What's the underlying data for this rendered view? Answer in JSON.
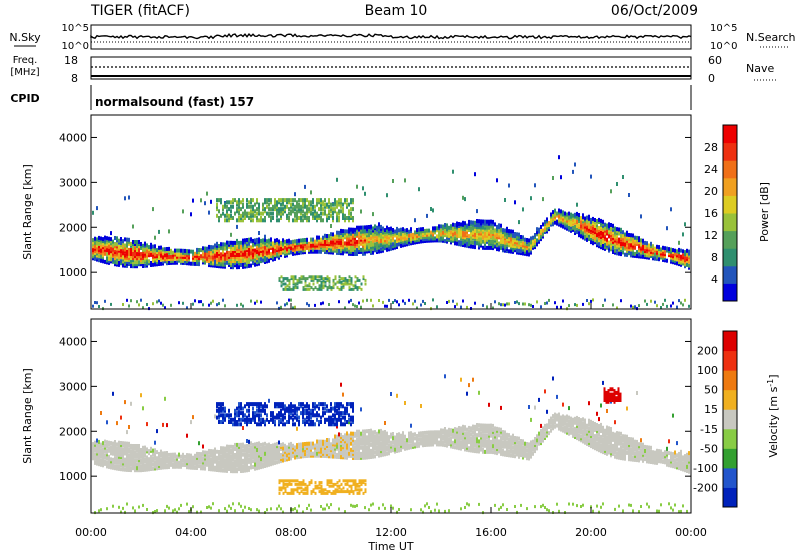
{
  "header": {
    "radar_label": "TIGER (fitACF)",
    "beam_label": "Beam 10",
    "date_label": "06/Oct/2009"
  },
  "noise_panel": {
    "left_label": "N.Sky",
    "right_label": "N.Search",
    "left_ticks": [
      "10^5",
      "10^0"
    ],
    "right_ticks": [
      "10^5",
      "10^0"
    ]
  },
  "freq_panel": {
    "left_label_line1": "Freq.",
    "left_label_line2": "[MHz]",
    "right_label": "Nave",
    "left_ticks": [
      "18",
      "8"
    ],
    "right_ticks": [
      "60",
      "0"
    ]
  },
  "cpid_panel": {
    "left_label": "CPID",
    "program_text": "normalsound (fast) 157"
  },
  "chart_data": [
    {
      "type": "heatmap",
      "title": "",
      "xlabel": "Time UT",
      "ylabel": "Slant Range [km]",
      "x_ticks": [
        "00:00",
        "04:00",
        "08:00",
        "12:00",
        "16:00",
        "20:00",
        "00:00"
      ],
      "xlim_hours": [
        0,
        24
      ],
      "y_ticks": [
        1000,
        2000,
        3000,
        4000
      ],
      "ylim": [
        180,
        4500
      ],
      "colorbar": {
        "label": "Power [dB]",
        "ticks": [
          4,
          8,
          12,
          16,
          20,
          24,
          28
        ],
        "range": [
          0,
          30
        ],
        "colors": [
          "#0000dd",
          "#2255bb",
          "#2f8f6f",
          "#55a05a",
          "#99c23a",
          "#ddcc22",
          "#f0a020",
          "#f07018",
          "#ee3010",
          "#ee0000"
        ]
      },
      "main_band_center_km": [
        {
          "t": 0,
          "km": 1580
        },
        {
          "t": 2,
          "km": 1440
        },
        {
          "t": 4,
          "km": 1380
        },
        {
          "t": 6,
          "km": 1460
        },
        {
          "t": 8,
          "km": 1600
        },
        {
          "t": 10,
          "km": 1720
        },
        {
          "t": 12,
          "km": 1800
        },
        {
          "t": 14,
          "km": 1920
        },
        {
          "t": 16,
          "km": 1880
        },
        {
          "t": 17.5,
          "km": 1600
        },
        {
          "t": 18.5,
          "km": 2300
        },
        {
          "t": 19.5,
          "km": 2100
        },
        {
          "t": 21,
          "km": 1750
        },
        {
          "t": 22.5,
          "km": 1500
        },
        {
          "t": 24,
          "km": 1320
        }
      ]
    },
    {
      "type": "heatmap",
      "title": "",
      "xlabel": "Time UT",
      "ylabel": "Slant Range [km]",
      "x_ticks": [
        "00:00",
        "04:00",
        "08:00",
        "12:00",
        "16:00",
        "20:00",
        "00:00"
      ],
      "xlim_hours": [
        0,
        24
      ],
      "y_ticks": [
        1000,
        2000,
        3000,
        4000
      ],
      "ylim": [
        180,
        4500
      ],
      "colorbar": {
        "label": "Velocity [m s^-1]",
        "ticks": [
          "200",
          "100",
          "50",
          "15",
          "-15",
          "-50",
          "-100",
          "-200"
        ],
        "colors": [
          "#0022bb",
          "#2255cc",
          "#33a030",
          "#88cc44",
          "#c8c8c0",
          "#f0b020",
          "#ee7a10",
          "#ee3010",
          "#dd0000"
        ]
      },
      "ground_scatter_color": "#c8c8c0"
    }
  ]
}
